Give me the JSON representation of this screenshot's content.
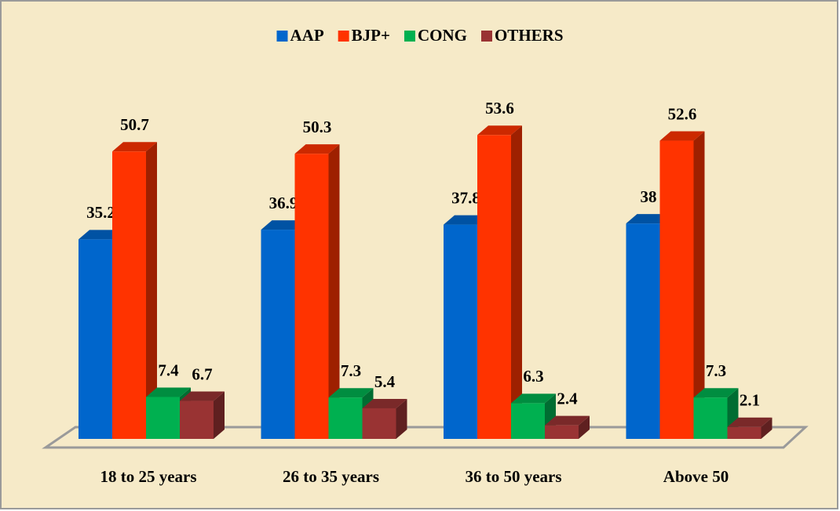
{
  "chart_data": {
    "type": "bar3d",
    "categories": [
      "18 to 25 years",
      "26 to 35 years",
      "36 to 50 years",
      "Above 50"
    ],
    "series": [
      {
        "name": "AAP",
        "color": "#0066cc",
        "values": [
          35.2,
          36.9,
          37.8,
          38
        ]
      },
      {
        "name": "BJP+",
        "color": "#ff3300",
        "values": [
          50.7,
          50.3,
          53.6,
          52.6
        ]
      },
      {
        "name": "CONG",
        "color": "#00b050",
        "values": [
          7.4,
          7.3,
          6.3,
          7.3
        ]
      },
      {
        "name": "OTHERS",
        "color": "#993333",
        "values": [
          6.7,
          5.4,
          2.4,
          2.1
        ]
      }
    ],
    "ylim": [
      0,
      60
    ],
    "legend": "top"
  }
}
